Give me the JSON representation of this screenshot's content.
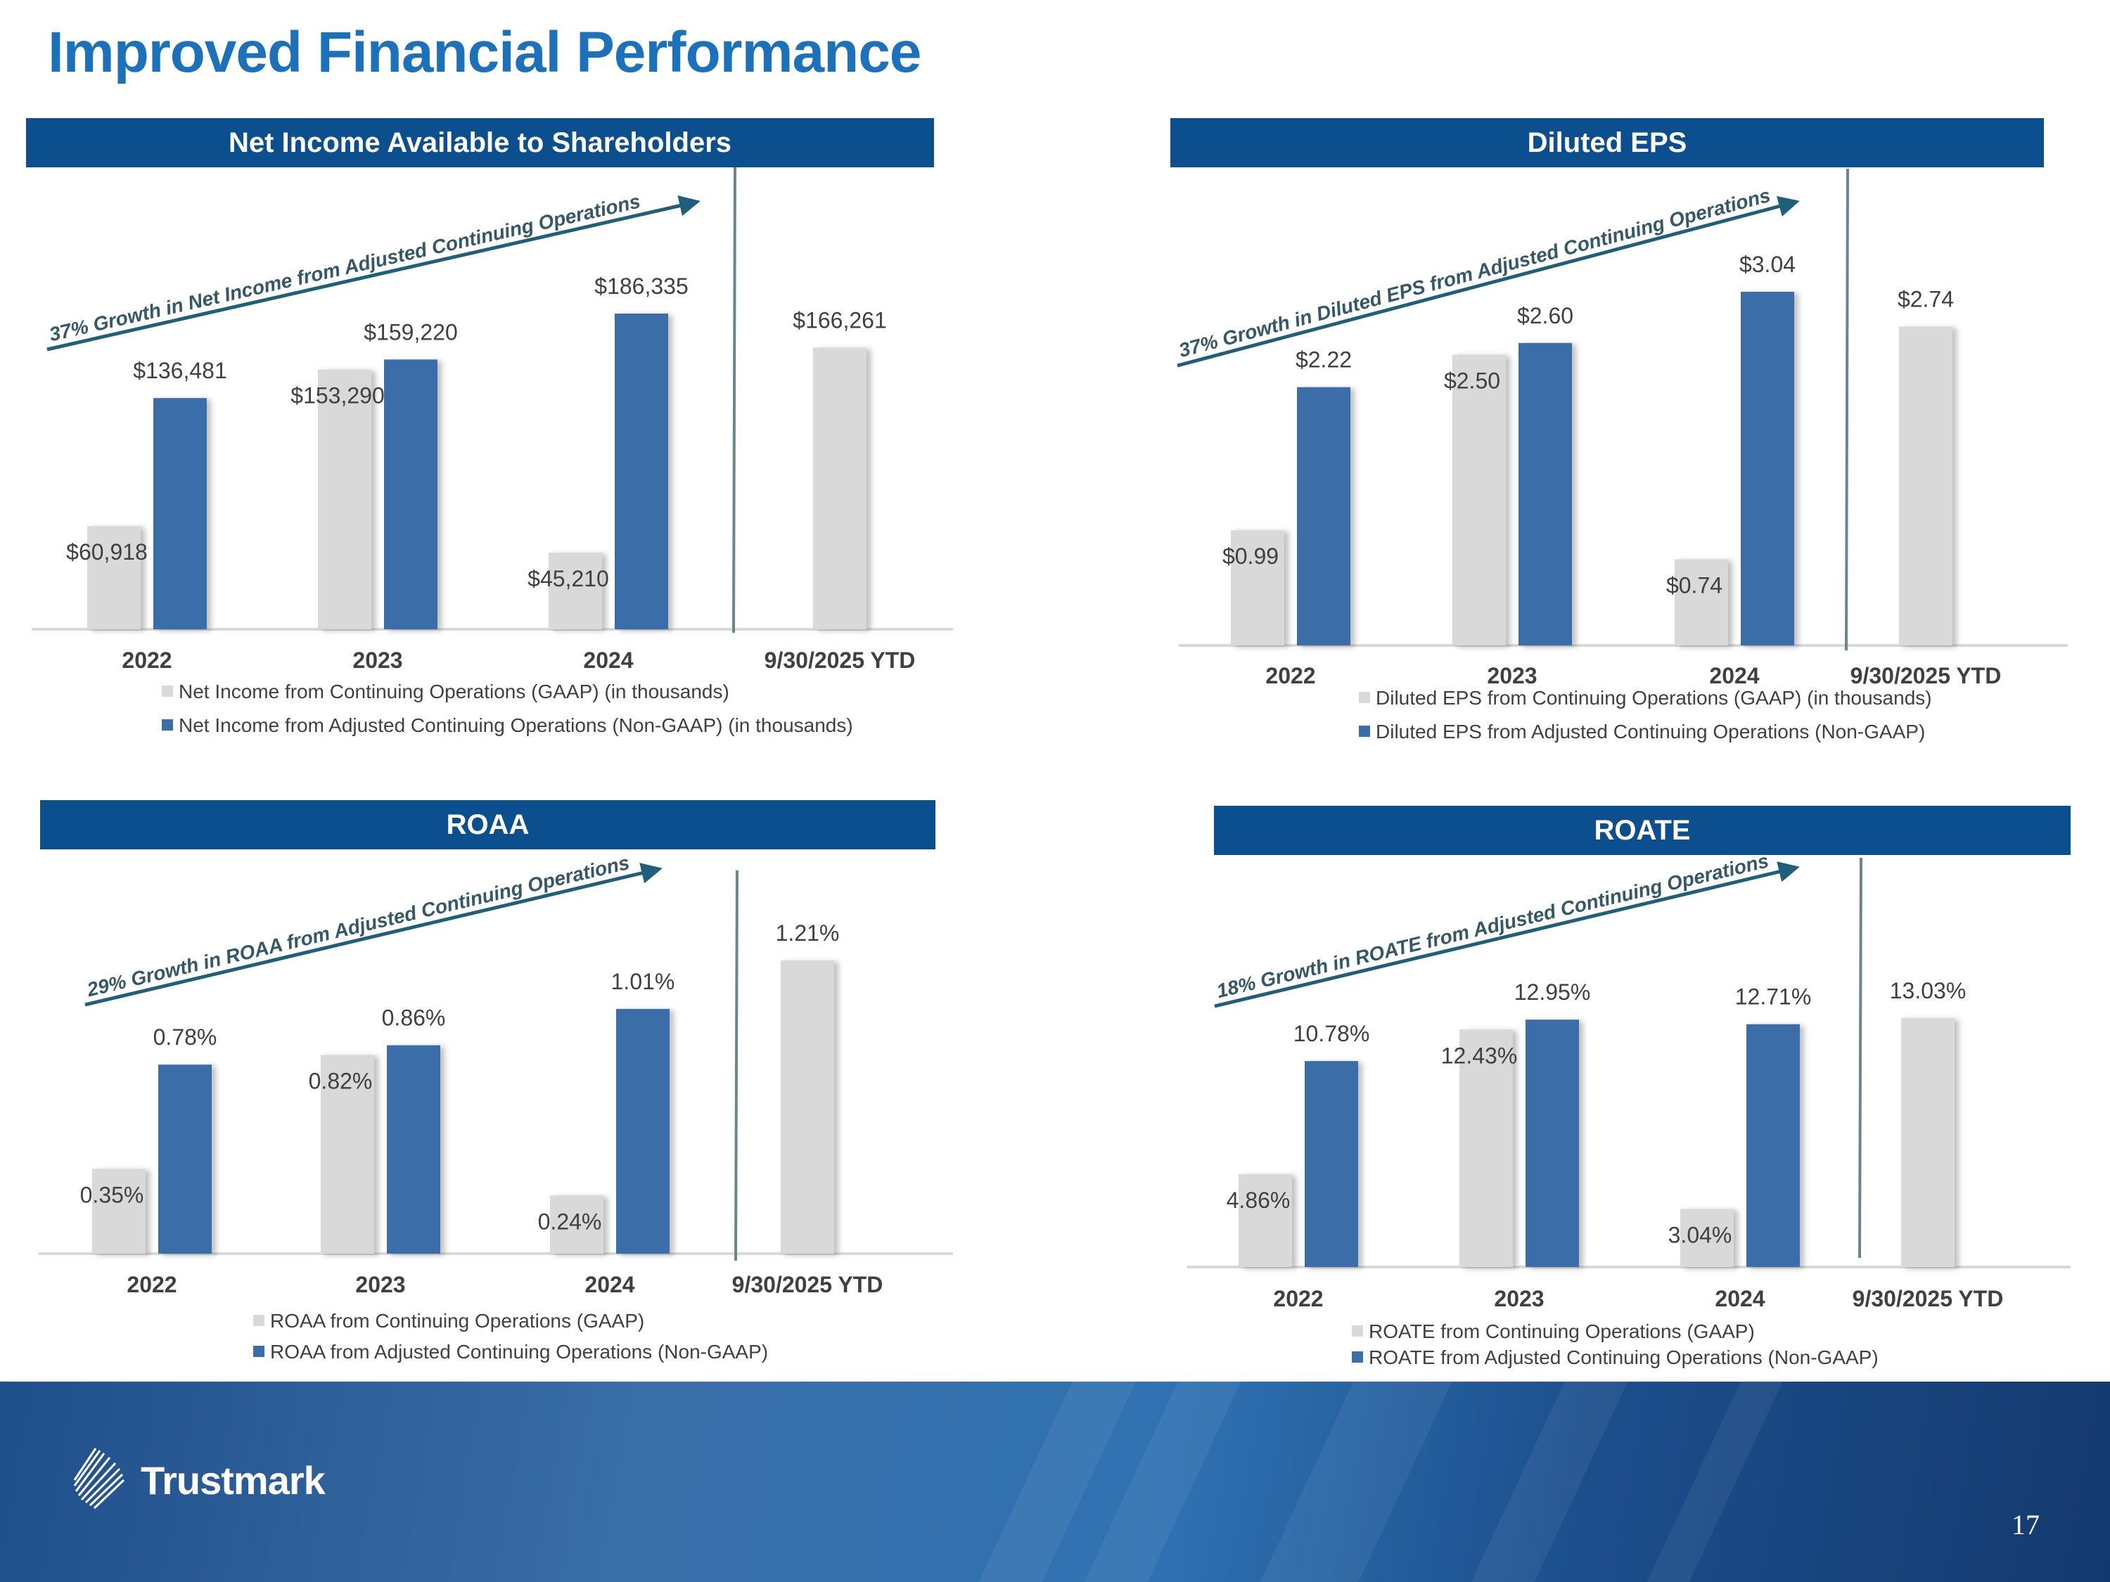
{
  "title": "Improved Financial Performance",
  "footer": {
    "logo_text": "Trustmark",
    "page_number": "17"
  },
  "colors": {
    "gaap": "#d9d9d9",
    "non_gaap": "#3a6ea8",
    "header": "#0b4f8f",
    "title": "#1b72bb",
    "arrow": "#1f5f7a"
  },
  "chart_data": [
    {
      "type": "bar",
      "title": "Net Income Available to Shareholders",
      "categories": [
        "2022",
        "2023",
        "2024",
        "9/30/2025 YTD"
      ],
      "series": [
        {
          "name": "Net Income from Continuing Operations (GAAP) (in thousands)",
          "values": [
            60918,
            153290,
            45210,
            166261
          ],
          "labels": [
            "$60,918",
            "$153,290",
            "$45,210",
            "$166,261"
          ]
        },
        {
          "name": "Net Income from Adjusted Continuing Operations (Non-GAAP) (in thousands)",
          "values": [
            136481,
            159220,
            186335,
            null
          ],
          "labels": [
            "$136,481",
            "$159,220",
            "$186,335",
            null
          ]
        }
      ],
      "annotation": "37% Growth in Net Income from Adjusted Continuing Operations",
      "ylim": [
        0,
        186335
      ],
      "legend": "bottom"
    },
    {
      "type": "bar",
      "title": "Diluted EPS",
      "categories": [
        "2022",
        "2023",
        "2024",
        "9/30/2025 YTD"
      ],
      "series": [
        {
          "name": "Diluted EPS from Continuing Operations (GAAP) (in thousands)",
          "values": [
            0.99,
            2.5,
            0.74,
            2.74
          ],
          "labels": [
            "$0.99",
            "$2.50",
            "$0.74",
            "$2.74"
          ]
        },
        {
          "name": "Diluted EPS from Adjusted Continuing Operations (Non-GAAP)",
          "values": [
            2.22,
            2.6,
            3.04,
            null
          ],
          "labels": [
            "$2.22",
            "$2.60",
            "$3.04",
            null
          ]
        }
      ],
      "annotation": "37% Growth in Diluted EPS from Adjusted  Continuing Operations",
      "ylim": [
        0,
        3.04
      ],
      "legend": "bottom"
    },
    {
      "type": "bar",
      "title": "ROAA",
      "categories": [
        "2022",
        "2023",
        "2024",
        "9/30/2025 YTD"
      ],
      "series": [
        {
          "name": "ROAA from Continuing Operations (GAAP)",
          "values": [
            0.35,
            0.82,
            0.24,
            1.21
          ],
          "labels": [
            "0.35%",
            "0.82%",
            "0.24%",
            "1.21%"
          ]
        },
        {
          "name": "ROAA from Adjusted Continuing Operations (Non-GAAP)",
          "values": [
            0.78,
            0.86,
            1.01,
            null
          ],
          "labels": [
            "0.78%",
            "0.86%",
            "1.01%",
            null
          ]
        }
      ],
      "annotation": "29% Growth in ROAA from Adjusted Continuing Operations",
      "ylim": [
        0,
        1.21
      ],
      "legend": "bottom"
    },
    {
      "type": "bar",
      "title": "ROATE",
      "categories": [
        "2022",
        "2023",
        "2024",
        "9/30/2025 YTD"
      ],
      "series": [
        {
          "name": "ROATE from Continuing Operations (GAAP)",
          "values": [
            4.86,
            12.43,
            3.04,
            13.03
          ],
          "labels": [
            "4.86%",
            "12.43%",
            "3.04%",
            "13.03%"
          ]
        },
        {
          "name": "ROATE from Adjusted Continuing Operations (Non-GAAP)",
          "values": [
            10.78,
            12.95,
            12.71,
            null
          ],
          "labels": [
            "10.78%",
            "12.95%",
            "12.71%",
            null
          ]
        }
      ],
      "annotation": "18% Growth in ROATE from Adjusted Continuing Operations",
      "ylim": [
        0,
        13.03
      ],
      "legend": "bottom"
    }
  ]
}
